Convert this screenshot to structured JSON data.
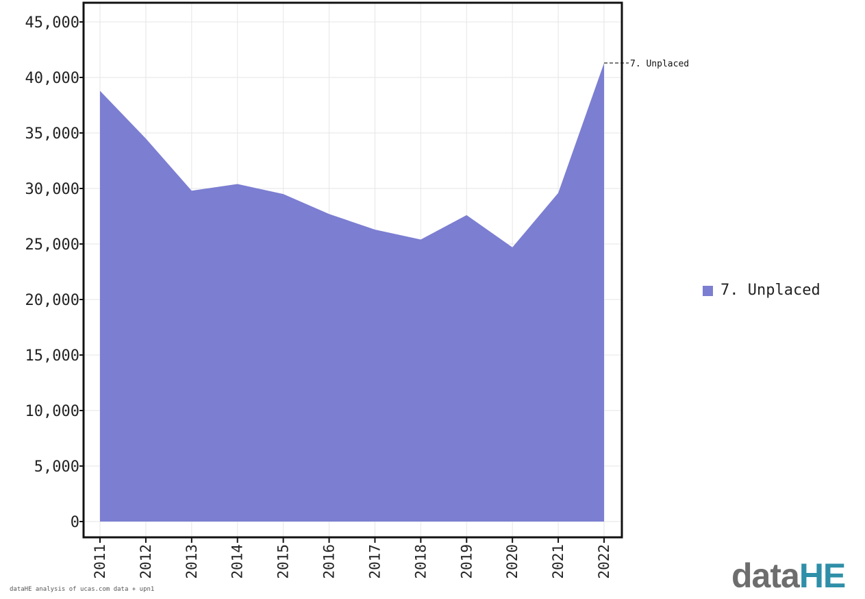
{
  "chart_data": {
    "type": "area",
    "title": "",
    "xlabel": "",
    "ylabel": "",
    "x": [
      "2011",
      "2012",
      "2013",
      "2014",
      "2015",
      "2016",
      "2017",
      "2018",
      "2019",
      "2020",
      "2021",
      "2022"
    ],
    "series": [
      {
        "name": "7. Unplaced",
        "color": "#7b7ed1",
        "values": [
          38800,
          34500,
          29800,
          30400,
          29500,
          27700,
          26300,
          25400,
          27600,
          24700,
          29600,
          41300
        ]
      }
    ],
    "ylim": [
      0,
      46500
    ],
    "yticks": [
      0,
      5000,
      10000,
      15000,
      20000,
      25000,
      30000,
      35000,
      40000,
      45000
    ],
    "ytick_labels": [
      "0",
      "5,000",
      "10,000",
      "15,000",
      "20,000",
      "25,000",
      "30,000",
      "35,000",
      "40,000",
      "45,000"
    ],
    "end_label": "7. Unplaced",
    "legend": {
      "position": "right",
      "entries": [
        "7. Unplaced"
      ]
    },
    "grid": true
  },
  "source_note": "dataHE analysis of ucas.com data + upn1",
  "logo": {
    "part1": "data",
    "part2": "HE"
  }
}
